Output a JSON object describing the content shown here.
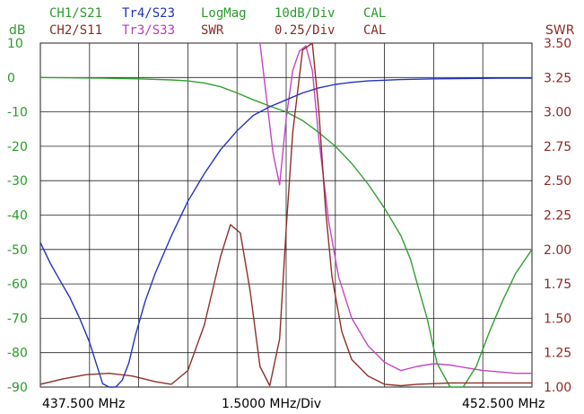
{
  "header": {
    "row1": [
      {
        "text": "CH1/S21",
        "color": "#2a9a2a"
      },
      {
        "text": "Tr4/S23",
        "color": "#1e32b4"
      },
      {
        "text": "LogMag",
        "color": "#2a9a2a"
      },
      {
        "text": "10dB/Div",
        "color": "#2a9a2a"
      },
      {
        "text": "CAL",
        "color": "#2a9a2a"
      }
    ],
    "row2": [
      {
        "text": "CH2/S11",
        "color": "#8b2a24"
      },
      {
        "text": "Tr3/S33",
        "color": "#b93cb4"
      },
      {
        "text": "SWR",
        "color": "#8b2a24"
      },
      {
        "text": "0.25/Div",
        "color": "#8b2a24"
      },
      {
        "text": "CAL",
        "color": "#8b2a24"
      }
    ]
  },
  "footer": {
    "start_freq": "437.500 MHz",
    "span_per_div": "1.5000 MHz/Div",
    "stop_freq": "452.500 MHz"
  },
  "colors": {
    "s21": "#2fa02f",
    "s23": "#2233c0",
    "s11": "#8f2f28",
    "s33": "#c545c5",
    "left_axis": "#2a9a2a",
    "right_axis": "#8b2a24",
    "grid": "#222222"
  },
  "chart_data": {
    "type": "line",
    "x_unit": "MHz",
    "xlim": [
      437.5,
      452.5
    ],
    "left_axis": {
      "label": "dB",
      "ylim": [
        -90,
        10
      ],
      "ticks": [
        "10",
        "0",
        "-10",
        "-20",
        "-30",
        "-40",
        "-50",
        "-60",
        "-70",
        "-80",
        "-90"
      ]
    },
    "right_axis": {
      "label": "SWR",
      "ylim": [
        1.0,
        3.5
      ],
      "ticks": [
        "3.50",
        "3.25",
        "3.00",
        "2.75",
        "2.50",
        "2.25",
        "2.00",
        "1.75",
        "1.50",
        "1.25",
        "1.00"
      ]
    },
    "grid": true,
    "series": [
      {
        "name": "CH1/S21",
        "axis": "left",
        "color": "#2fa02f",
        "x": [
          437.5,
          438.5,
          439.5,
          440.5,
          441.5,
          442.0,
          442.5,
          443.0,
          443.5,
          444.0,
          444.5,
          445.0,
          445.5,
          446.0,
          446.5,
          447.0,
          447.5,
          448.0,
          448.5,
          448.8,
          449.0,
          449.3,
          449.6,
          450.0,
          450.4,
          450.8,
          451.2,
          451.6,
          452.0,
          452.5
        ],
        "y": [
          0.0,
          -0.1,
          -0.2,
          -0.4,
          -0.7,
          -1.0,
          -1.6,
          -2.7,
          -4.5,
          -6.5,
          -8.3,
          -10.0,
          -12.5,
          -16.0,
          -20.0,
          -25.0,
          -31.0,
          -38.0,
          -46.0,
          -53.0,
          -60.0,
          -70.0,
          -83.0,
          -90.0,
          -90.0,
          -84.0,
          -74.0,
          -65.0,
          -57.0,
          -50.0
        ]
      },
      {
        "name": "Tr4/S23",
        "axis": "left",
        "color": "#2233c0",
        "x": [
          437.5,
          437.8,
          438.1,
          438.4,
          438.7,
          439.0,
          439.2,
          439.4,
          439.6,
          439.8,
          440.0,
          440.2,
          440.4,
          440.7,
          441.0,
          441.5,
          442.0,
          442.5,
          443.0,
          443.5,
          444.0,
          444.5,
          445.0,
          445.5,
          446.0,
          446.5,
          447.0,
          447.5,
          448.5,
          449.5,
          450.5,
          451.5,
          452.5
        ],
        "y": [
          -48.0,
          -54.0,
          -59.0,
          -64.0,
          -70.0,
          -77.0,
          -83.0,
          -89.0,
          -90.0,
          -90.0,
          -88.0,
          -83.0,
          -75.0,
          -65.0,
          -57.0,
          -46.0,
          -36.0,
          -28.0,
          -21.0,
          -15.5,
          -11.0,
          -8.5,
          -6.5,
          -4.5,
          -3.0,
          -2.0,
          -1.4,
          -1.0,
          -0.6,
          -0.4,
          -0.3,
          -0.2,
          -0.2
        ]
      },
      {
        "name": "CH2/S11",
        "axis": "right",
        "color": "#8f2f28",
        "x": [
          437.5,
          438.2,
          438.9,
          439.6,
          440.3,
          441.0,
          441.5,
          442.0,
          442.5,
          443.0,
          443.3,
          443.6,
          443.9,
          444.2,
          444.5,
          444.8,
          445.0,
          445.2,
          445.5,
          445.8,
          446.0,
          446.2,
          446.4,
          446.7,
          447.0,
          447.5,
          448.0,
          448.5,
          449.0,
          450.0,
          451.0,
          452.5
        ],
        "y": [
          1.02,
          1.06,
          1.09,
          1.1,
          1.08,
          1.04,
          1.02,
          1.12,
          1.45,
          1.95,
          2.18,
          2.12,
          1.7,
          1.15,
          1.01,
          1.35,
          2.15,
          2.85,
          3.45,
          3.5,
          3.0,
          2.3,
          1.8,
          1.4,
          1.2,
          1.08,
          1.02,
          1.01,
          1.02,
          1.03,
          1.03,
          1.03
        ]
      },
      {
        "name": "Tr3/S33",
        "axis": "right",
        "color": "#c545c5",
        "x": [
          444.2,
          444.4,
          444.6,
          444.8,
          445.0,
          445.2,
          445.4,
          445.6,
          445.8,
          446.0,
          446.3,
          446.6,
          447.0,
          447.5,
          448.0,
          448.5,
          449.0,
          449.5,
          450.0,
          450.5,
          451.0,
          451.5,
          452.0,
          452.5
        ],
        "y": [
          3.5,
          3.1,
          2.7,
          2.47,
          2.95,
          3.3,
          3.44,
          3.48,
          3.3,
          2.8,
          2.2,
          1.8,
          1.5,
          1.3,
          1.18,
          1.12,
          1.15,
          1.17,
          1.16,
          1.14,
          1.12,
          1.11,
          1.1,
          1.1
        ]
      }
    ]
  }
}
